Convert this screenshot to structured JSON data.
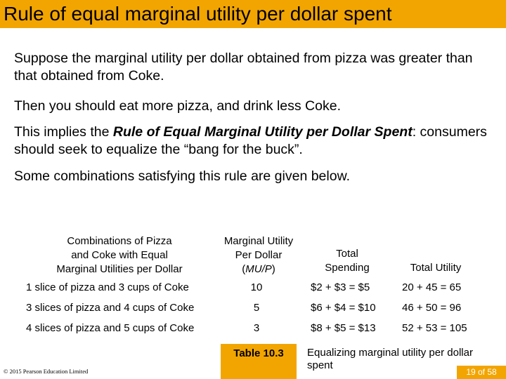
{
  "header": {
    "title": "Rule of equal marginal utility per dollar spent"
  },
  "body": {
    "p1": "Suppose the marginal utility per dollar obtained from pizza was greater than that obtained from Coke.",
    "p2": "Then you should eat more pizza, and drink less Coke.",
    "p3_before": "This implies the ",
    "p3_rule": "Rule of Equal Marginal Utility per Dollar Spent",
    "p3_after": ": consumers should seek to equalize the “bang for the buck”.",
    "p4": "Some combinations satisfying this rule are given below."
  },
  "table": {
    "headers": {
      "combinations": [
        "Combinations of Pizza",
        "and Coke with Equal",
        "Marginal Utilities per Dollar"
      ],
      "mu_line1": "Marginal Utility",
      "mu_line2": "Per Dollar",
      "mu_open": "(",
      "mu_formula": "MU/P",
      "mu_close": ")",
      "spending": [
        "Total",
        "Spending"
      ],
      "utility": "Total Utility"
    },
    "rows": [
      {
        "combination": "1 slice of pizza and 3 cups of Coke",
        "mu_per_dollar": "10",
        "spending": "$2 + $3 = $5",
        "utility": "20 + 45 = 65"
      },
      {
        "combination": "3 slices of pizza and 4 cups of Coke",
        "mu_per_dollar": "5",
        "spending": "$6 + $4 = $10",
        "utility": "46 + 50 = 96"
      },
      {
        "combination": "4 slices of pizza and 5 cups of Coke",
        "mu_per_dollar": "3",
        "spending": "$8 + $5 = $13",
        "utility": "52 + 53 = 105"
      }
    ],
    "label": "Table 10.3",
    "caption": "Equalizing marginal utility per dollar spent"
  },
  "footer": {
    "copyright": "© 2015 Pearson Education Limited",
    "page": "19 of 58"
  },
  "colors": {
    "accent": "#f2a500",
    "page_text": "#ffffff"
  }
}
